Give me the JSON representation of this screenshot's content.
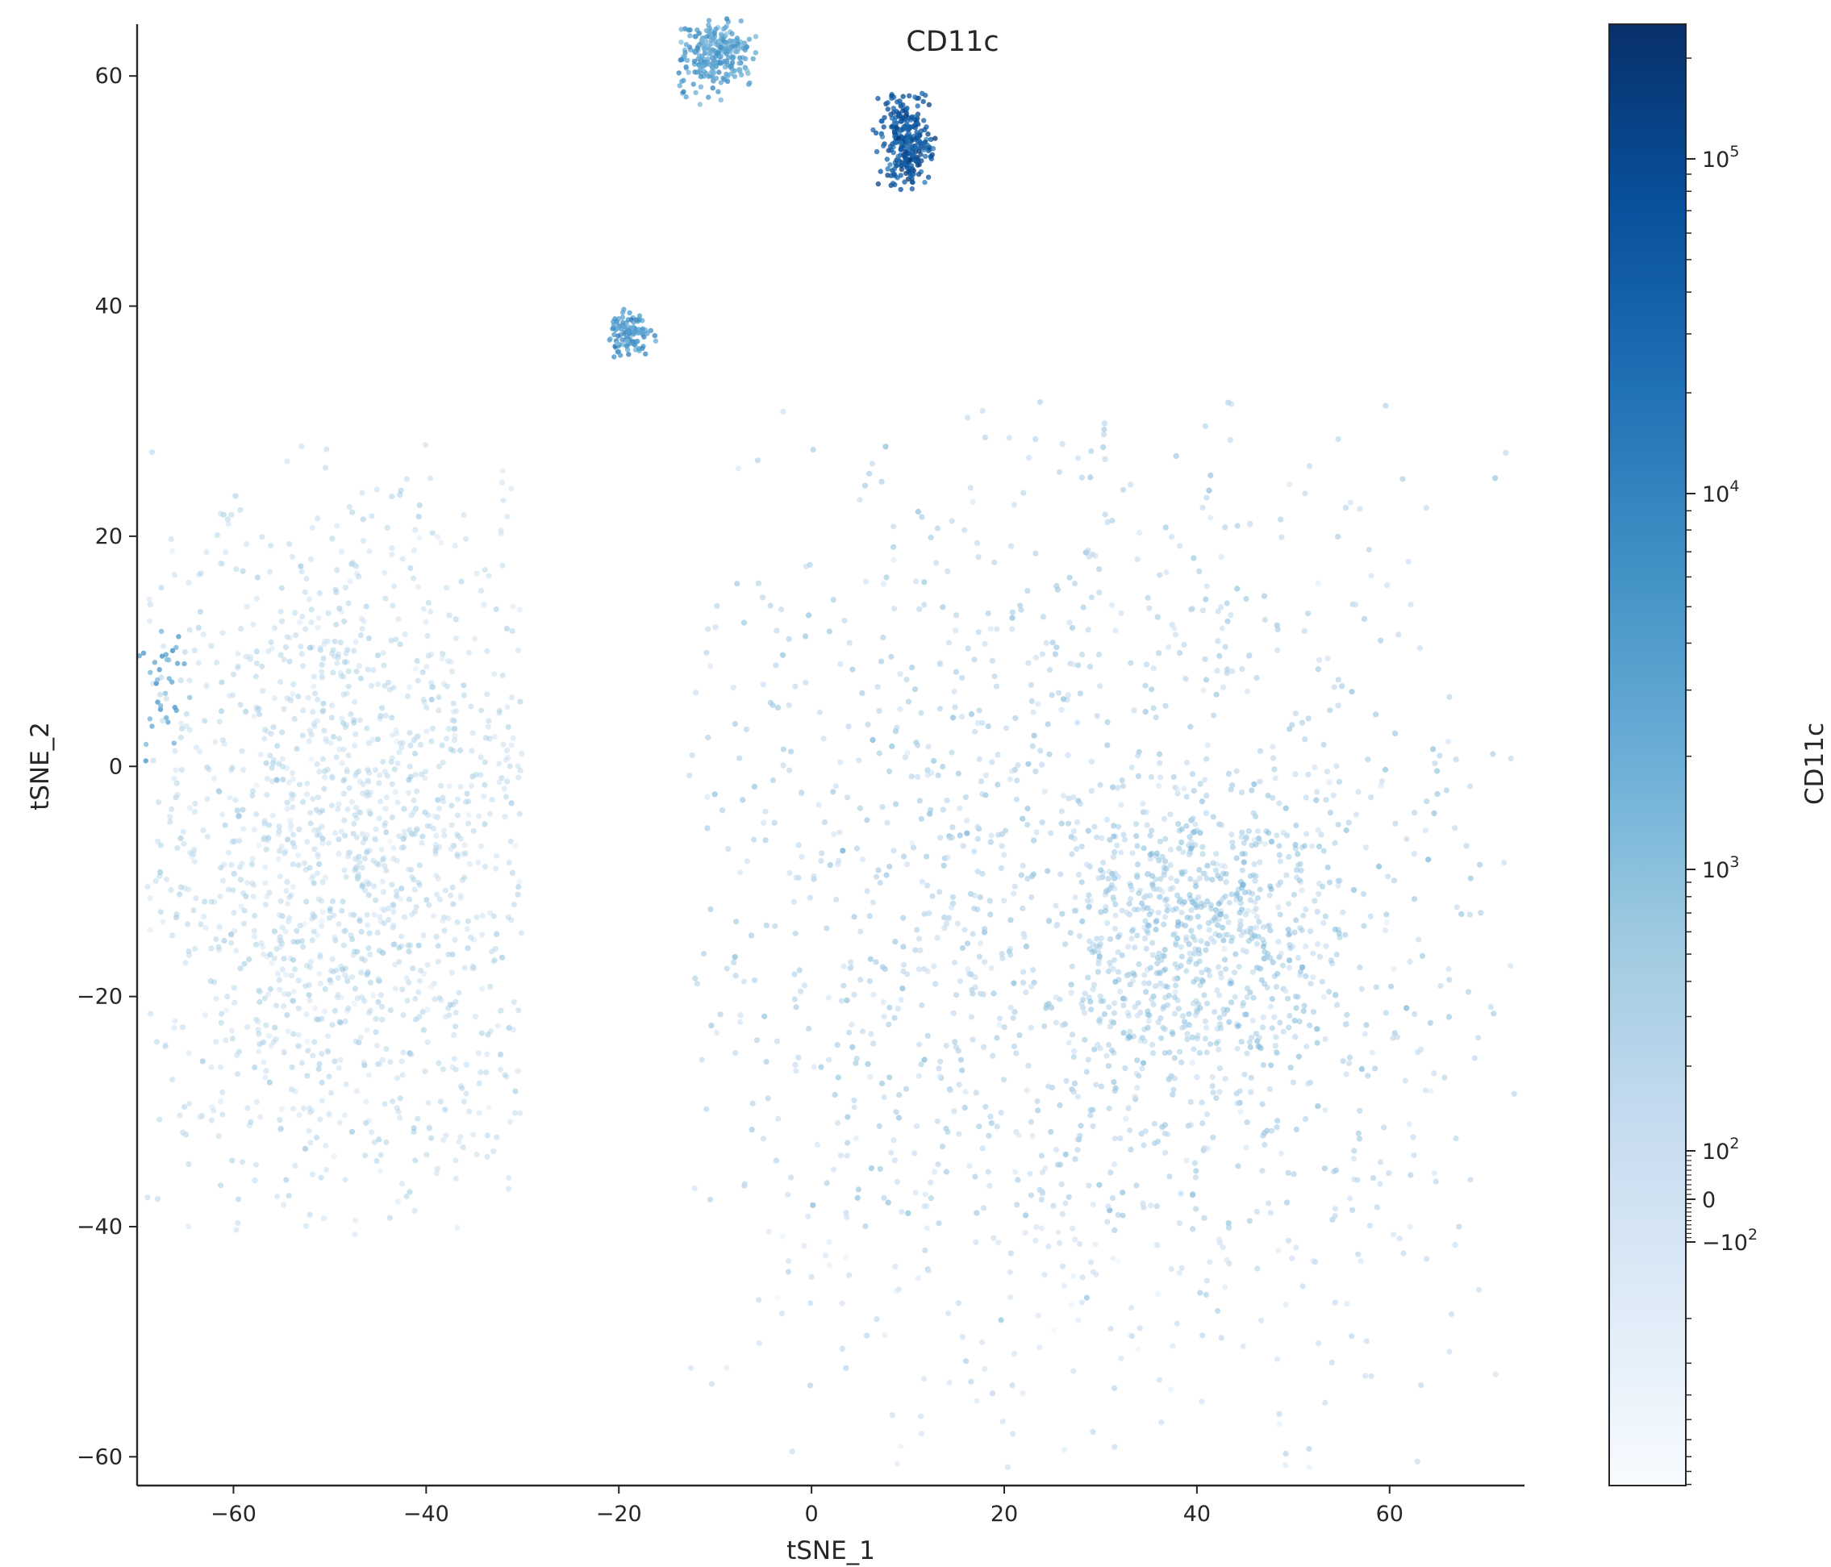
{
  "chart_data": {
    "type": "scatter",
    "title": "CD11c",
    "xlabel": "tSNE_1",
    "ylabel": "tSNE_2",
    "xlim": [
      -70,
      74
    ],
    "ylim": [
      -62.5,
      64.5
    ],
    "xticks": [
      -60,
      -40,
      -20,
      0,
      20,
      40,
      60
    ],
    "yticks": [
      -60,
      -40,
      -20,
      0,
      20,
      40,
      60
    ],
    "xtick_labels": [
      "−60",
      "−40",
      "−20",
      "0",
      "20",
      "40",
      "60"
    ],
    "ytick_labels": [
      "−60",
      "−40",
      "−20",
      "0",
      "20",
      "40",
      "60"
    ],
    "colormap": "Blues",
    "color_scale": "symlog",
    "colorbar": {
      "label": "CD11c",
      "major_ticks": [
        {
          "value": -100,
          "label": "−10",
          "exp": "2"
        },
        {
          "value": 0,
          "label": "0",
          "exp": ""
        },
        {
          "value": 100,
          "label": "10",
          "exp": "2"
        },
        {
          "value": 1000,
          "label": "10",
          "exp": "3"
        },
        {
          "value": 10000,
          "label": "10",
          "exp": "4"
        },
        {
          "value": 100000,
          "label": "10",
          "exp": "5"
        }
      ]
    },
    "clusters": [
      {
        "name": "left-mass",
        "center": [
          -48,
          -8
        ],
        "spread": [
          12,
          16
        ],
        "extent_x": [
          -69,
          -30
        ],
        "extent_y": [
          -41,
          28
        ],
        "intensity": 0.32
      },
      {
        "name": "right-mass",
        "center": [
          28,
          -15
        ],
        "spread": [
          22,
          21
        ],
        "extent_x": [
          -13,
          73
        ],
        "extent_y": [
          -62,
          32
        ],
        "intensity": 0.28
      },
      {
        "name": "dense-region",
        "center": [
          40,
          -15
        ],
        "spread": [
          8,
          8
        ],
        "extent_x": [
          28,
          55
        ],
        "extent_y": [
          -25,
          -5
        ],
        "intensity": 0.42
      },
      {
        "name": "top-left-cluster",
        "center": [
          -10,
          62
        ],
        "spread": [
          2,
          1.6
        ],
        "extent_x": [
          -14,
          -5
        ],
        "extent_y": [
          57,
          65
        ],
        "intensity": 0.55
      },
      {
        "name": "top-dark-cluster",
        "center": [
          9.7,
          54.4
        ],
        "spread": [
          1.3,
          2.2
        ],
        "extent_x": [
          6,
          13
        ],
        "extent_y": [
          50,
          58.5
        ],
        "intensity": 0.85
      },
      {
        "name": "small-cluster",
        "center": [
          -19,
          37.5
        ],
        "spread": [
          1.1,
          0.9
        ],
        "extent_x": [
          -22,
          -16
        ],
        "extent_y": [
          35.5,
          40
        ],
        "intensity": 0.6
      },
      {
        "name": "edge-spur",
        "center": [
          -67,
          7
        ],
        "spread": [
          1.5,
          4
        ],
        "extent_x": [
          -70,
          -64
        ],
        "extent_y": [
          0,
          13
        ],
        "intensity": 0.55
      }
    ]
  }
}
